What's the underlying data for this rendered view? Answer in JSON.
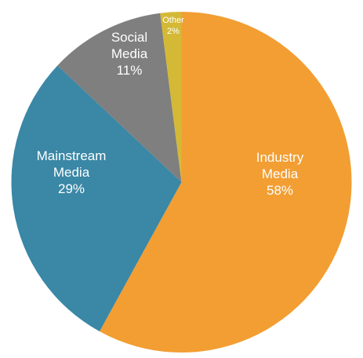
{
  "chart_data": {
    "type": "pie",
    "start_angle_deg": 0,
    "direction": "clockwise",
    "slices": [
      {
        "name": "Industry Media",
        "label_lines": [
          "Industry",
          "Media",
          "58%"
        ],
        "value": 58,
        "color": "#F29E33"
      },
      {
        "name": "Mainstream Media",
        "label_lines": [
          "Mainstream",
          "Media",
          "29%"
        ],
        "value": 29,
        "color": "#3A87A6"
      },
      {
        "name": "Social Media",
        "label_lines": [
          "Social",
          "Media",
          "11%"
        ],
        "value": 11,
        "color": "#7F7F7F"
      },
      {
        "name": "Other",
        "label_lines": [
          "Other",
          "2%"
        ],
        "value": 2,
        "color": "#D4B936"
      }
    ],
    "title": "",
    "legend": "none",
    "labels": "inside"
  }
}
